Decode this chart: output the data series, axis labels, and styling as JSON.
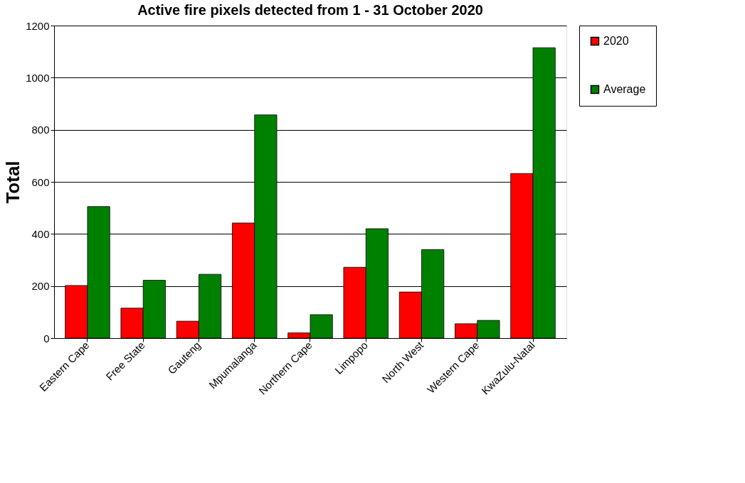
{
  "chart_data": {
    "type": "bar",
    "title": "Active fire pixels detected from 1 - 31 October 2020",
    "ylabel": "Total",
    "categories": [
      "Eastern Cape",
      "Free State",
      "Gauteng",
      "Mpumalanga",
      "Northern Cape",
      "Limpopo",
      "North West",
      "Western Cape",
      "KwaZulu-Natal"
    ],
    "series": [
      {
        "name": "2020",
        "color": "#ff0000",
        "values": [
          202,
          115,
          65,
          442,
          20,
          272,
          177,
          55,
          632
        ]
      },
      {
        "name": "Average",
        "color": "#008000",
        "values": [
          505,
          222,
          245,
          857,
          90,
          420,
          340,
          68,
          1115
        ]
      }
    ],
    "ylim": [
      0,
      1200
    ],
    "yticks": [
      0,
      200,
      400,
      600,
      800,
      1000,
      1200
    ],
    "grid": "y",
    "legend": "right"
  }
}
